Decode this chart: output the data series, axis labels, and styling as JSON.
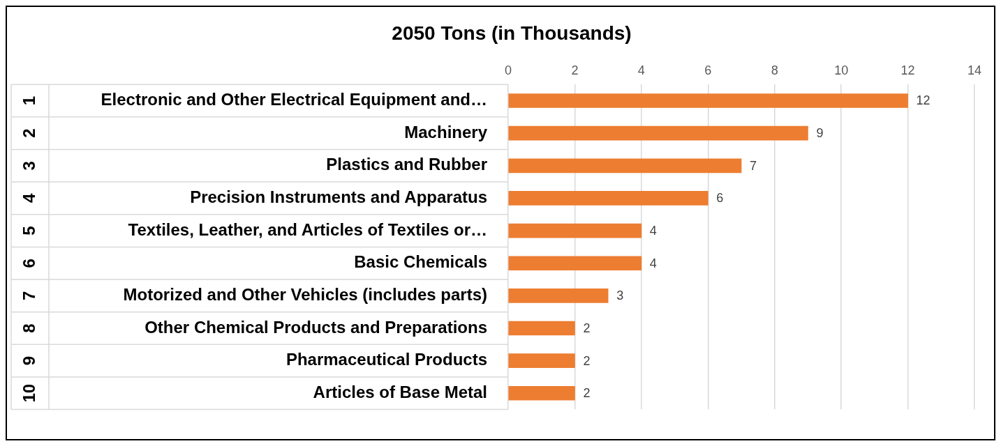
{
  "chart_data": {
    "type": "bar",
    "orientation": "horizontal",
    "title": "2050 Tons (in Thousands)",
    "categories": [
      "Electronic and Other Electrical Equipment and…",
      "Machinery",
      "Plastics and Rubber",
      "Precision Instruments and Apparatus",
      "Textiles, Leather, and Articles of Textiles or…",
      "Basic Chemicals",
      "Motorized and Other Vehicles (includes parts)",
      "Other Chemical Products and Preparations",
      "Pharmaceutical Products",
      "Articles of Base Metal"
    ],
    "values": [
      12,
      9,
      7,
      6,
      4,
      4,
      3,
      2,
      2,
      2
    ],
    "color": "#ed7d31",
    "xlim": [
      0,
      14
    ],
    "xticks": [
      0,
      2,
      4,
      6,
      8,
      10,
      12,
      14
    ],
    "grid": "x",
    "data_labels": true,
    "annotations": [
      "1",
      "2",
      "3",
      "4",
      "5",
      "6",
      "7",
      "8",
      "9",
      "10"
    ]
  }
}
